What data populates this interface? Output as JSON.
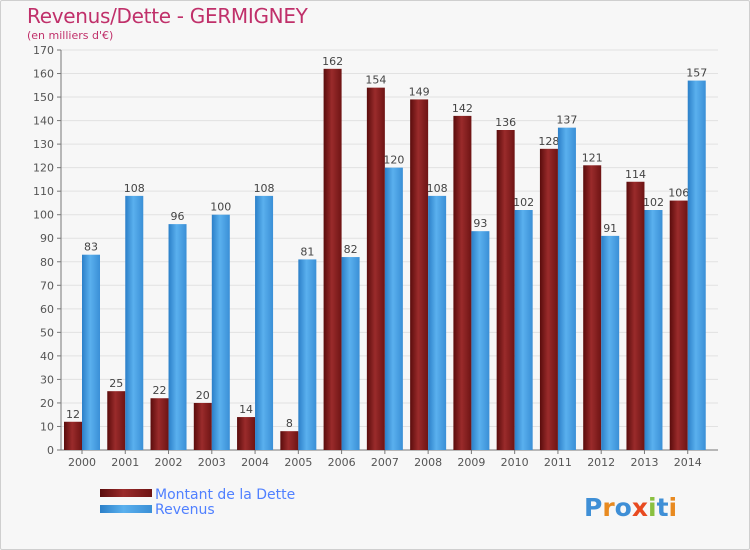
{
  "chart_data": {
    "type": "bar",
    "title": "Revenus/Dette - GERMIGNEY",
    "subtitle": "(en milliers d'€)",
    "categories": [
      "2000",
      "2001",
      "2002",
      "2003",
      "2004",
      "2005",
      "2006",
      "2007",
      "2008",
      "2009",
      "2010",
      "2011",
      "2012",
      "2013",
      "2014"
    ],
    "series": [
      {
        "name": "Montant de la Dette",
        "color": "#8b1e1e",
        "values": [
          12,
          25,
          22,
          20,
          14,
          8,
          162,
          154,
          149,
          142,
          136,
          128,
          121,
          114,
          106
        ]
      },
      {
        "name": "Revenus",
        "color": "#3f9be0",
        "values": [
          83,
          108,
          96,
          100,
          108,
          81,
          82,
          120,
          108,
          93,
          102,
          137,
          91,
          102,
          157
        ]
      }
    ],
    "ylim": [
      0,
      170
    ],
    "ytick_step": 10,
    "grid": true,
    "legend_position": "bottom-left"
  },
  "logo": {
    "text": "Proxiti"
  }
}
